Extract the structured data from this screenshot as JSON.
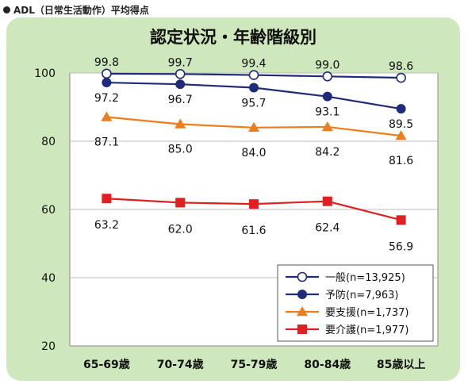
{
  "header": {
    "text": "ADL（日常生活動作）平均得点"
  },
  "chart_data": {
    "type": "line",
    "title": "認定状況・年齢階級別",
    "categories": [
      "65-69歳",
      "70-74歳",
      "75-79歳",
      "80-84歳",
      "85歳以上"
    ],
    "ylim": [
      20,
      100
    ],
    "yticks": [
      20,
      40,
      60,
      80,
      100
    ],
    "grid": true,
    "legend_position": "bottom-right",
    "series": [
      {
        "name": "一般(n=13,925)",
        "values": [
          99.8,
          99.7,
          99.4,
          99.0,
          98.6
        ],
        "color": "#1f2a7a",
        "marker": "open-circle"
      },
      {
        "name": "予防(n=7,963)",
        "values": [
          97.2,
          96.7,
          95.7,
          93.1,
          89.5
        ],
        "color": "#1f2a7a",
        "marker": "filled-circle"
      },
      {
        "name": "要支援(n=1,737)",
        "values": [
          87.1,
          85.0,
          84.0,
          84.2,
          81.6
        ],
        "color": "#ee7d1c",
        "marker": "triangle"
      },
      {
        "name": "要介護(n=1,977)",
        "values": [
          63.2,
          62.0,
          61.6,
          62.4,
          56.9
        ],
        "color": "#e02020",
        "marker": "square"
      }
    ]
  }
}
